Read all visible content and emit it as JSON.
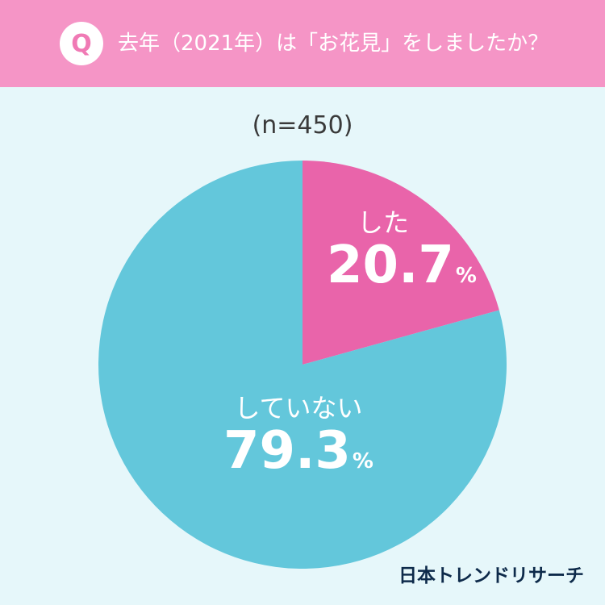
{
  "header": {
    "badge": "Q",
    "question": "去年（2021年）は「お花見」をしましたか？"
  },
  "sample_size": "(n=450)",
  "brand": "日本トレンドリサーチ",
  "chart_data": {
    "type": "pie",
    "title": "去年（2021年）は「お花見」をしましたか？",
    "categories": [
      "した",
      "していない"
    ],
    "values": [
      20.7,
      79.3
    ],
    "colors": [
      "#e964aa",
      "#63c7db"
    ],
    "unit": "%",
    "start_angle_deg": 0,
    "direction": "clockwise"
  },
  "labels": [
    {
      "name": "した",
      "value": "20.7",
      "unit": "%"
    },
    {
      "name": "していない",
      "value": "79.3",
      "unit": "%"
    }
  ]
}
